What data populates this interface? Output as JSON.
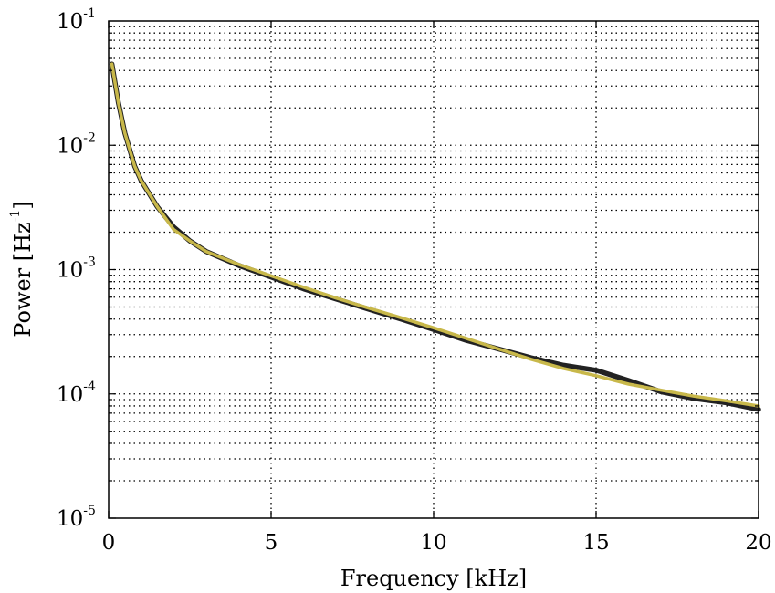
{
  "chart_data": {
    "type": "line",
    "title": "",
    "xlabel": "Frequency [kHz]",
    "ylabel_base": "Power [Hz",
    "ylabel_exponent": "-1",
    "ylabel_close": "]",
    "xlim": [
      0,
      20
    ],
    "ylim": [
      1e-05,
      0.1
    ],
    "yscale": "log",
    "grid": true,
    "x_ticks": [
      "0",
      "5",
      "10",
      "15",
      "20"
    ],
    "y_ticks": [
      {
        "base": "10",
        "exp": "-5"
      },
      {
        "base": "10",
        "exp": "-4"
      },
      {
        "base": "10",
        "exp": "-3"
      },
      {
        "base": "10",
        "exp": "-2"
      },
      {
        "base": "10",
        "exp": "-1"
      }
    ],
    "series": [
      {
        "color": "#222222",
        "x": [
          0.1,
          0.3,
          0.5,
          0.8,
          1.0,
          1.5,
          2.0,
          2.5,
          3.0,
          4.0,
          5.0,
          6.0,
          7.0,
          8.0,
          9.0,
          10.0,
          11.0,
          12.0,
          13.0,
          14.0,
          15.0,
          16.0,
          17.0,
          18.0,
          19.0,
          20.0
        ],
        "y": [
          0.045,
          0.022,
          0.0125,
          0.0068,
          0.0052,
          0.0032,
          0.0022,
          0.0017,
          0.0014,
          0.00108,
          0.00087,
          0.0007,
          0.00058,
          0.00048,
          0.0004,
          0.00033,
          0.00027,
          0.00023,
          0.000195,
          0.00017,
          0.000155,
          0.000128,
          0.000104,
          9.2e-05,
          8.5e-05,
          7.5e-05
        ]
      },
      {
        "color": "#c8b84a",
        "x": [
          0.1,
          0.3,
          0.5,
          0.8,
          1.0,
          1.5,
          2.0,
          2.5,
          3.0,
          4.0,
          5.0,
          6.0,
          7.0,
          8.0,
          9.0,
          10.0,
          11.0,
          12.0,
          13.0,
          14.0,
          15.0,
          16.0,
          17.0,
          18.0,
          19.0,
          20.0
        ],
        "y": [
          0.045,
          0.022,
          0.0125,
          0.0068,
          0.0052,
          0.0032,
          0.0021,
          0.0017,
          0.0014,
          0.0011,
          0.00089,
          0.00072,
          0.00059,
          0.00049,
          0.00041,
          0.00034,
          0.00028,
          0.00023,
          0.00019,
          0.00016,
          0.00014,
          0.00012,
          0.000107,
          9.6e-05,
          8.8e-05,
          8e-05
        ]
      }
    ]
  }
}
